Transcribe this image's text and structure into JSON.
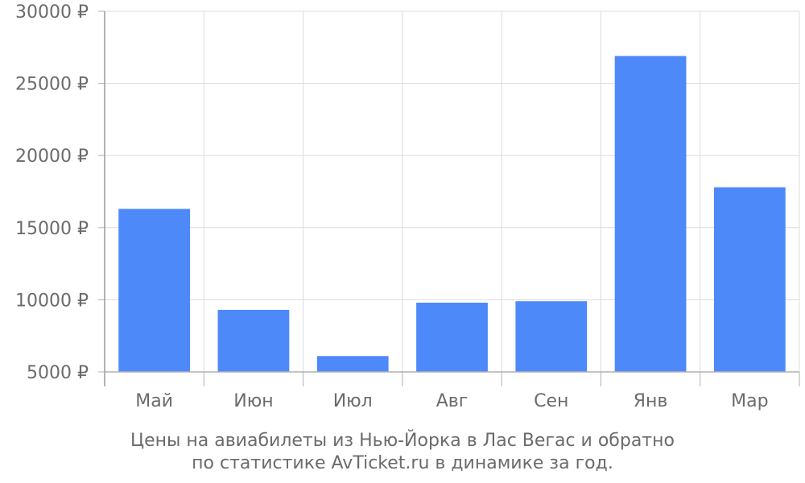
{
  "chart_data": {
    "type": "bar",
    "categories": [
      "Май",
      "Июн",
      "Июл",
      "Авг",
      "Сен",
      "Янв",
      "Мар"
    ],
    "values": [
      16300,
      9300,
      6100,
      9800,
      9900,
      26900,
      17800
    ],
    "y_ticks": [
      "5000 ₽",
      "10000 ₽",
      "15000 ₽",
      "20000 ₽",
      "25000 ₽",
      "30000 ₽"
    ],
    "ylim": [
      5000,
      30000
    ],
    "ytick_values": [
      5000,
      10000,
      15000,
      20000,
      25000,
      30000
    ],
    "grid": true,
    "bar_color": "#4d89f9",
    "title": "Цены на авиабилеты из Нью-Йорка в Лас Вегас и обратно",
    "subtitle": "по статистике AvTicket.ru в динамике за год."
  }
}
